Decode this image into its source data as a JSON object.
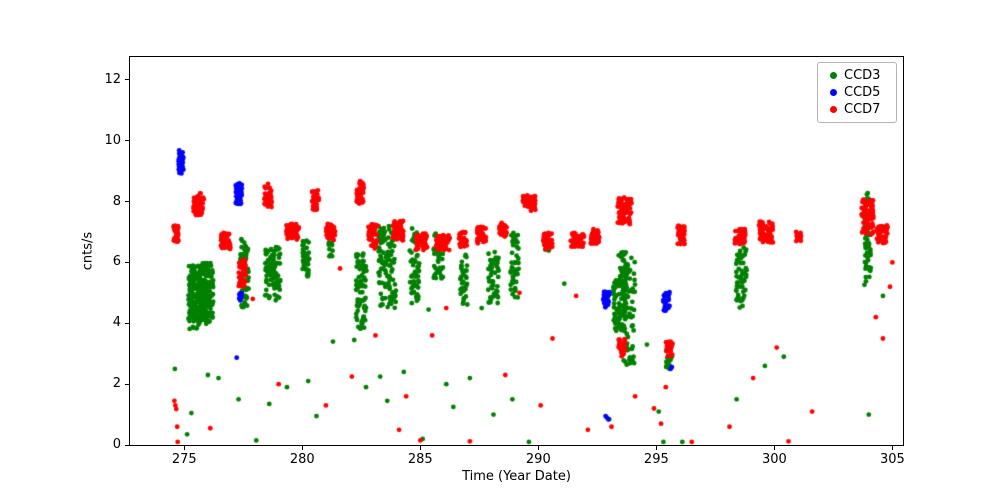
{
  "chart_data": {
    "type": "scatter",
    "title": "",
    "xlabel": "Time (Year Date)",
    "ylabel": "cnts/s",
    "xlim": [
      272.7,
      305.45
    ],
    "ylim": [
      0,
      12.75
    ],
    "xticks": [
      275,
      280,
      285,
      290,
      295,
      300,
      305
    ],
    "yticks": [
      0,
      2,
      4,
      6,
      8,
      10,
      12
    ],
    "grid": false,
    "legend_position": "upper right",
    "cluster_fields": [
      "x_center",
      "y_center",
      "x_spread",
      "y_spread",
      "count"
    ],
    "series": [
      {
        "name": "CCD3",
        "color": "#008000",
        "clusters": [
          [
            275.45,
            4.85,
            0.55,
            2.1,
            130
          ],
          [
            275.95,
            5.05,
            0.55,
            1.9,
            130
          ],
          [
            275.7,
            4.7,
            1.0,
            1.5,
            70
          ],
          [
            277.55,
            5.6,
            0.35,
            2.4,
            75
          ],
          [
            278.75,
            5.6,
            0.65,
            1.8,
            95
          ],
          [
            280.15,
            6.15,
            0.3,
            1.3,
            40
          ],
          [
            281.2,
            6.45,
            0.18,
            0.5,
            10
          ],
          [
            282.5,
            5.05,
            0.45,
            2.5,
            85
          ],
          [
            283.6,
            5.85,
            0.75,
            2.7,
            115
          ],
          [
            284.75,
            5.9,
            0.4,
            2.5,
            60
          ],
          [
            285.75,
            6.2,
            0.45,
            1.5,
            45
          ],
          [
            286.85,
            5.45,
            0.3,
            1.7,
            35
          ],
          [
            288.1,
            5.5,
            0.45,
            1.7,
            50
          ],
          [
            289.0,
            5.9,
            0.35,
            2.2,
            45
          ],
          [
            290.4,
            6.5,
            0.25,
            0.4,
            10
          ],
          [
            293.45,
            4.6,
            0.55,
            1.7,
            90
          ],
          [
            293.85,
            4.5,
            0.5,
            3.8,
            70
          ],
          [
            293.6,
            5.9,
            0.4,
            0.9,
            25
          ],
          [
            295.55,
            2.85,
            0.3,
            0.8,
            18
          ],
          [
            298.6,
            5.5,
            0.45,
            2.0,
            60
          ],
          [
            303.95,
            6.6,
            0.28,
            2.7,
            55
          ],
          [
            303.95,
            8.05,
            0.18,
            0.5,
            8
          ]
        ],
        "points": [
          [
            274.6,
            2.5
          ],
          [
            275.12,
            0.35
          ],
          [
            275.3,
            1.05
          ],
          [
            276.0,
            2.3
          ],
          [
            276.45,
            2.2
          ],
          [
            277.3,
            1.5
          ],
          [
            278.05,
            0.15
          ],
          [
            278.6,
            1.35
          ],
          [
            279.35,
            1.9
          ],
          [
            280.25,
            2.1
          ],
          [
            280.6,
            0.95
          ],
          [
            281.3,
            3.4
          ],
          [
            282.2,
            3.45
          ],
          [
            282.7,
            1.9
          ],
          [
            283.3,
            2.25
          ],
          [
            283.6,
            1.45
          ],
          [
            284.3,
            2.4
          ],
          [
            285.1,
            0.2
          ],
          [
            285.35,
            4.45
          ],
          [
            286.1,
            2.0
          ],
          [
            286.4,
            1.25
          ],
          [
            287.1,
            2.2
          ],
          [
            287.6,
            4.5
          ],
          [
            288.1,
            1.0
          ],
          [
            288.9,
            1.5
          ],
          [
            289.6,
            0.1
          ],
          [
            291.1,
            5.3
          ],
          [
            293.0,
            0.85
          ],
          [
            294.6,
            3.3
          ],
          [
            295.1,
            1.1
          ],
          [
            295.3,
            0.1
          ],
          [
            296.1,
            0.1
          ],
          [
            298.4,
            1.5
          ],
          [
            299.6,
            2.6
          ],
          [
            300.4,
            2.9
          ],
          [
            304.0,
            1.0
          ],
          [
            304.6,
            4.9
          ]
        ]
      },
      {
        "name": "CCD5",
        "color": "#0000ff",
        "clusters": [
          [
            274.85,
            9.3,
            0.22,
            0.8,
            40
          ],
          [
            277.3,
            8.25,
            0.28,
            0.7,
            50
          ],
          [
            277.38,
            4.88,
            0.14,
            0.32,
            10
          ],
          [
            292.88,
            4.8,
            0.28,
            0.55,
            32
          ],
          [
            295.42,
            4.72,
            0.28,
            0.62,
            32
          ]
        ],
        "points": [
          [
            277.22,
            2.87
          ],
          [
            292.85,
            0.95
          ],
          [
            292.9,
            0.9
          ],
          [
            292.97,
            0.84
          ],
          [
            295.6,
            2.5
          ],
          [
            295.66,
            2.56
          ]
        ]
      },
      {
        "name": "CCD7",
        "color": "#ff0000",
        "clusters": [
          [
            274.65,
            6.95,
            0.2,
            0.55,
            30
          ],
          [
            275.6,
            7.9,
            0.45,
            0.75,
            60
          ],
          [
            276.75,
            6.7,
            0.4,
            0.55,
            40
          ],
          [
            277.45,
            5.65,
            0.3,
            0.9,
            45
          ],
          [
            278.55,
            8.2,
            0.3,
            0.8,
            40
          ],
          [
            279.6,
            7.0,
            0.55,
            0.55,
            50
          ],
          [
            280.55,
            8.05,
            0.3,
            0.65,
            45
          ],
          [
            281.2,
            7.0,
            0.4,
            0.55,
            45
          ],
          [
            282.45,
            8.3,
            0.3,
            0.75,
            45
          ],
          [
            283.0,
            6.85,
            0.4,
            0.8,
            45
          ],
          [
            284.05,
            7.05,
            0.45,
            0.65,
            45
          ],
          [
            285.05,
            6.65,
            0.5,
            0.6,
            45
          ],
          [
            285.95,
            6.65,
            0.6,
            0.5,
            50
          ],
          [
            286.8,
            6.75,
            0.35,
            0.5,
            30
          ],
          [
            287.6,
            6.9,
            0.4,
            0.55,
            40
          ],
          [
            288.5,
            7.05,
            0.35,
            0.5,
            30
          ],
          [
            289.6,
            7.95,
            0.55,
            0.5,
            55
          ],
          [
            290.4,
            6.7,
            0.4,
            0.55,
            45
          ],
          [
            291.65,
            6.75,
            0.6,
            0.5,
            50
          ],
          [
            292.4,
            6.85,
            0.35,
            0.5,
            40
          ],
          [
            293.65,
            7.7,
            0.6,
            0.9,
            70
          ],
          [
            293.55,
            3.2,
            0.3,
            0.6,
            25
          ],
          [
            295.55,
            3.15,
            0.3,
            0.5,
            25
          ],
          [
            296.05,
            6.9,
            0.3,
            0.6,
            40
          ],
          [
            298.55,
            6.85,
            0.45,
            0.5,
            45
          ],
          [
            299.65,
            7.0,
            0.6,
            0.7,
            65
          ],
          [
            301.05,
            6.85,
            0.3,
            0.35,
            20
          ],
          [
            303.95,
            7.5,
            0.5,
            1.15,
            65
          ],
          [
            304.55,
            6.95,
            0.5,
            0.65,
            45
          ]
        ],
        "points": [
          [
            274.58,
            1.45
          ],
          [
            274.62,
            1.3
          ],
          [
            274.66,
            1.18
          ],
          [
            274.7,
            0.6
          ],
          [
            274.72,
            0.1
          ],
          [
            276.1,
            0.55
          ],
          [
            277.9,
            4.8
          ],
          [
            279.0,
            2.0
          ],
          [
            281.0,
            1.3
          ],
          [
            281.6,
            5.8
          ],
          [
            282.1,
            2.25
          ],
          [
            283.1,
            3.6
          ],
          [
            284.1,
            0.5
          ],
          [
            284.4,
            1.6
          ],
          [
            285.0,
            0.15
          ],
          [
            285.5,
            3.6
          ],
          [
            286.1,
            4.5
          ],
          [
            287.1,
            0.12
          ],
          [
            288.6,
            2.3
          ],
          [
            289.2,
            5.0
          ],
          [
            290.1,
            1.3
          ],
          [
            290.6,
            3.5
          ],
          [
            291.6,
            4.9
          ],
          [
            292.1,
            0.5
          ],
          [
            293.1,
            0.6
          ],
          [
            294.1,
            1.6
          ],
          [
            294.9,
            1.2
          ],
          [
            295.2,
            0.7
          ],
          [
            295.4,
            1.9
          ],
          [
            296.5,
            0.1
          ],
          [
            298.1,
            0.6
          ],
          [
            299.1,
            2.2
          ],
          [
            300.1,
            3.2
          ],
          [
            300.6,
            0.12
          ],
          [
            301.6,
            1.1
          ],
          [
            304.3,
            4.2
          ],
          [
            304.6,
            3.5
          ],
          [
            304.9,
            5.2
          ],
          [
            305.0,
            6.0
          ]
        ]
      }
    ]
  }
}
